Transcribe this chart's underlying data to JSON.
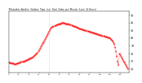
{
  "title": "Milwaukee Weather Outdoor Temp (vs) Heat Index per Minute (Last 24 Hours)",
  "background_color": "#ffffff",
  "line_color": "#ff0000",
  "grid_color": "#cccccc",
  "ylim": [
    15,
    95
  ],
  "xlim": [
    0,
    143
  ],
  "vline_x": 48,
  "y_ticks": [
    20,
    30,
    40,
    50,
    60,
    70,
    80,
    90
  ],
  "y_values": [
    28,
    28,
    27,
    27,
    27,
    27,
    26,
    26,
    26,
    26,
    27,
    27,
    27,
    28,
    28,
    29,
    29,
    30,
    30,
    31,
    31,
    32,
    32,
    33,
    33,
    34,
    34,
    35,
    35,
    36,
    37,
    38,
    39,
    40,
    41,
    43,
    45,
    47,
    49,
    51,
    53,
    55,
    57,
    59,
    61,
    63,
    65,
    67,
    69,
    71,
    73,
    74,
    75,
    75,
    76,
    76,
    77,
    77,
    78,
    78,
    79,
    79,
    80,
    80,
    81,
    80,
    80,
    80,
    79,
    79,
    79,
    78,
    78,
    77,
    77,
    76,
    76,
    75,
    75,
    75,
    74,
    74,
    73,
    73,
    72,
    72,
    72,
    71,
    71,
    71,
    70,
    70,
    70,
    69,
    69,
    69,
    68,
    68,
    68,
    67,
    67,
    67,
    66,
    66,
    66,
    65,
    65,
    65,
    64,
    64,
    64,
    63,
    63,
    63,
    62,
    62,
    62,
    61,
    61,
    61,
    60,
    59,
    58,
    57,
    55,
    52,
    48,
    43,
    37,
    30,
    25,
    40,
    38,
    36,
    34,
    32,
    30,
    28,
    26,
    24,
    22,
    20
  ]
}
